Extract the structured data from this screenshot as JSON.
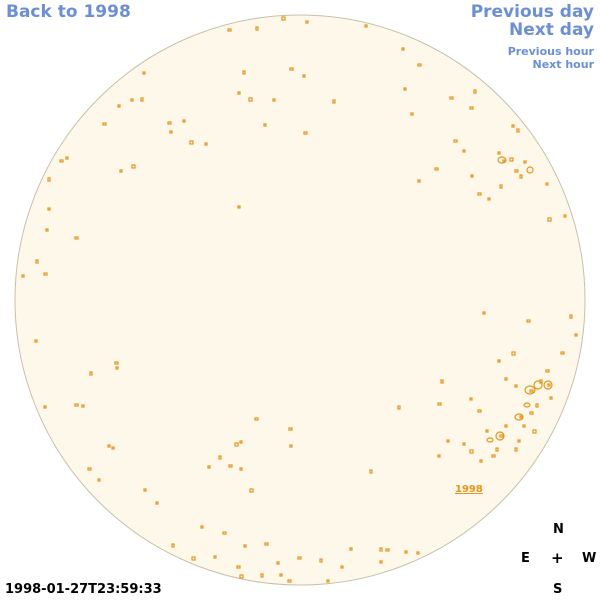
{
  "nav": {
    "back_year": "Back to 1998",
    "previous_day": "Previous day",
    "next_day": "Next day",
    "previous_hour": "Previous hour",
    "next_hour": "Next hour"
  },
  "year_link": "1998",
  "timestamp": "1998-01-27T23:59:33",
  "compass": {
    "north": "N",
    "east": "E",
    "center": "+",
    "west": "W",
    "south": "S"
  },
  "colors": {
    "disk_fill": "#fdf8ea",
    "disk_edge": "#c8c0a8",
    "contour": "#e8941a",
    "link": "#6b8fd6"
  }
}
